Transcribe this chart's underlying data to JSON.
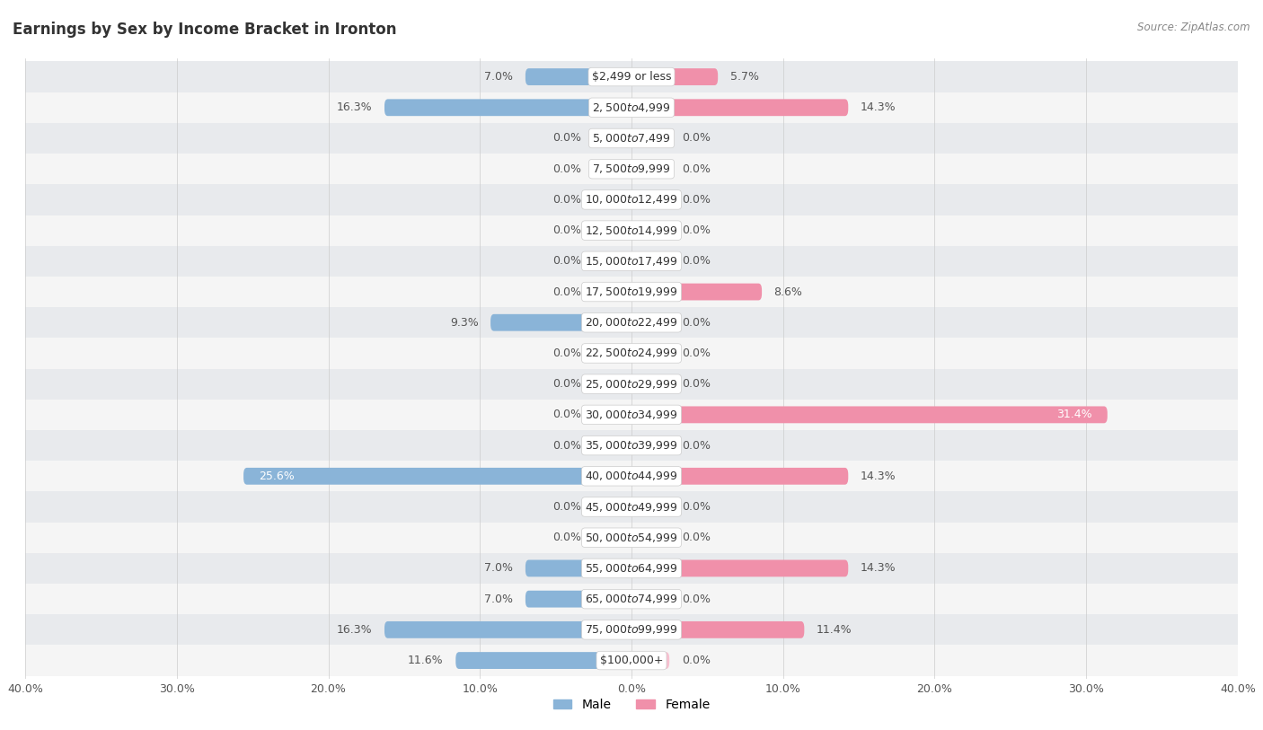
{
  "title": "Earnings by Sex by Income Bracket in Ironton",
  "source": "Source: ZipAtlas.com",
  "categories": [
    "$2,499 or less",
    "$2,500 to $4,999",
    "$5,000 to $7,499",
    "$7,500 to $9,999",
    "$10,000 to $12,499",
    "$12,500 to $14,999",
    "$15,000 to $17,499",
    "$17,500 to $19,999",
    "$20,000 to $22,499",
    "$22,500 to $24,999",
    "$25,000 to $29,999",
    "$30,000 to $34,999",
    "$35,000 to $39,999",
    "$40,000 to $44,999",
    "$45,000 to $49,999",
    "$50,000 to $54,999",
    "$55,000 to $64,999",
    "$65,000 to $74,999",
    "$75,000 to $99,999",
    "$100,000+"
  ],
  "male": [
    7.0,
    16.3,
    0.0,
    0.0,
    0.0,
    0.0,
    0.0,
    0.0,
    9.3,
    0.0,
    0.0,
    0.0,
    0.0,
    25.6,
    0.0,
    0.0,
    7.0,
    7.0,
    16.3,
    11.6
  ],
  "female": [
    5.7,
    14.3,
    0.0,
    0.0,
    0.0,
    0.0,
    0.0,
    8.6,
    0.0,
    0.0,
    0.0,
    31.4,
    0.0,
    14.3,
    0.0,
    0.0,
    14.3,
    0.0,
    11.4,
    0.0
  ],
  "male_color": "#8ab4d8",
  "female_color": "#f090aa",
  "male_stub_color": "#b8d4e8",
  "female_stub_color": "#f8c0d0",
  "bg_row_light": "#e8eaed",
  "bg_row_white": "#f5f5f5",
  "max_val": 40.0,
  "stub_size": 2.5,
  "title_fontsize": 12,
  "label_fontsize": 9,
  "bar_height": 0.55
}
